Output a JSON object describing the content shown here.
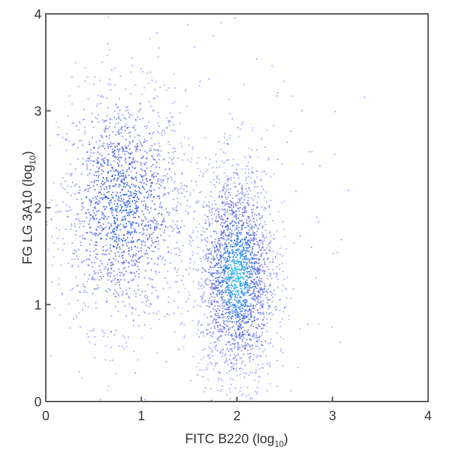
{
  "chart_data": {
    "type": "scatter",
    "title": "",
    "xlabel": "FITC B220 (log",
    "xlabel_sub": "10",
    "xlabel_end": ")",
    "ylabel": "FG LG 3A10 (log",
    "ylabel_sub": "10",
    "ylabel_end": ")",
    "xlim": [
      0,
      4
    ],
    "ylim": [
      0,
      4
    ],
    "xticks": [
      "0",
      "1",
      "2",
      "3",
      "4"
    ],
    "yticks": [
      "0",
      "1",
      "2",
      "3",
      "4"
    ],
    "grid": false,
    "populations": [
      {
        "center": [
          0.8,
          2.0
        ],
        "sd": [
          0.33,
          0.6
        ],
        "count": 1700
      },
      {
        "center": [
          2.0,
          1.3
        ],
        "sd": [
          0.2,
          0.55
        ],
        "count": 2300
      },
      {
        "center": [
          1.4,
          1.8
        ],
        "sd": [
          0.8,
          1.0
        ],
        "count": 250
      }
    ],
    "colors": {
      "low": "#3344dd",
      "high": "#22ccee",
      "axis": "#555555"
    }
  }
}
